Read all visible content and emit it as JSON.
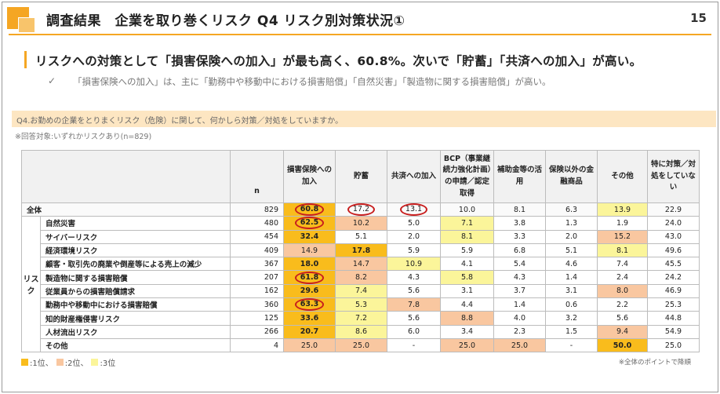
{
  "header": {
    "title": "調査結果　企業を取り巻くリスク Q4 リスク別対策状況①",
    "page_number": "15"
  },
  "headline": "リスクへの対策として「損害保険への加入」が最も高く、60.8%。次いで「貯蓄」「共済への加入」が高い。",
  "subnote": {
    "check": "✓",
    "text": "「損害保険への加入」は、主に「勤務中や移動中における損害賠償」「自然災害」「製造物に関する損害賠償」が高い。"
  },
  "question": "Q4.お勤めの企業をとりまくリスク（危険）に関して、何かしら対策／対処をしていますか。",
  "respondents": "※回答対象:いずれかリスクあり(n=829)",
  "table": {
    "columns": [
      "n",
      "損害保険への加入",
      "貯蓄",
      "共済への加入",
      "BCP（事業継続力強化計画）の申請／認定取得",
      "補助金等の活用",
      "保険以外の金融商品",
      "その他",
      "特に対策／対処をしていない"
    ],
    "group_label": "リスク",
    "total_row": {
      "label": "全体",
      "n": "829",
      "values": [
        "60.8",
        "17.2",
        "13.1",
        "10.0",
        "8.1",
        "6.3",
        "13.9",
        "22.9"
      ],
      "ranks": [
        1,
        0,
        0,
        0,
        0,
        0,
        3,
        0
      ],
      "circled": [
        true,
        true,
        true,
        false,
        false,
        false,
        false,
        false
      ]
    },
    "rows": [
      {
        "label": "自然災害",
        "n": "480",
        "values": [
          "62.5",
          "10.2",
          "5.0",
          "7.1",
          "3.8",
          "1.3",
          "1.9",
          "24.0"
        ],
        "ranks": [
          1,
          2,
          0,
          3,
          0,
          0,
          0,
          0
        ],
        "circled": [
          true,
          false,
          false,
          false,
          false,
          false,
          false,
          false
        ]
      },
      {
        "label": "サイバーリスク",
        "n": "454",
        "values": [
          "32.4",
          "5.1",
          "2.0",
          "8.1",
          "3.3",
          "2.0",
          "15.2",
          "43.0"
        ],
        "ranks": [
          1,
          0,
          0,
          3,
          0,
          0,
          2,
          0
        ],
        "circled": [
          false,
          false,
          false,
          false,
          false,
          false,
          false,
          false
        ]
      },
      {
        "label": "経済環境リスク",
        "n": "409",
        "values": [
          "14.9",
          "17.8",
          "5.9",
          "5.9",
          "6.8",
          "5.1",
          "8.1",
          "49.6"
        ],
        "ranks": [
          2,
          1,
          0,
          0,
          0,
          0,
          3,
          0
        ],
        "circled": [
          false,
          false,
          false,
          false,
          false,
          false,
          false,
          false
        ]
      },
      {
        "label": "顧客・取引先の廃業や倒産等による売上の減少",
        "n": "367",
        "values": [
          "18.0",
          "14.7",
          "10.9",
          "4.1",
          "5.4",
          "4.6",
          "7.4",
          "45.5"
        ],
        "ranks": [
          1,
          2,
          3,
          0,
          0,
          0,
          0,
          0
        ],
        "circled": [
          false,
          false,
          false,
          false,
          false,
          false,
          false,
          false
        ]
      },
      {
        "label": "製造物に関する損害賠償",
        "n": "207",
        "values": [
          "61.8",
          "8.2",
          "4.3",
          "5.8",
          "4.3",
          "1.4",
          "2.4",
          "24.2"
        ],
        "ranks": [
          1,
          2,
          0,
          3,
          0,
          0,
          0,
          0
        ],
        "circled": [
          true,
          false,
          false,
          false,
          false,
          false,
          false,
          false
        ]
      },
      {
        "label": "従業員からの損害賠償請求",
        "n": "162",
        "values": [
          "29.6",
          "7.4",
          "5.6",
          "3.1",
          "3.7",
          "3.1",
          "8.0",
          "46.9"
        ],
        "ranks": [
          1,
          3,
          0,
          0,
          0,
          0,
          2,
          0
        ],
        "circled": [
          false,
          false,
          false,
          false,
          false,
          false,
          false,
          false
        ]
      },
      {
        "label": "勤務中や移動中における損害賠償",
        "n": "360",
        "values": [
          "63.3",
          "5.3",
          "7.8",
          "4.4",
          "1.4",
          "0.6",
          "2.2",
          "25.3"
        ],
        "ranks": [
          1,
          3,
          2,
          0,
          0,
          0,
          0,
          0
        ],
        "circled": [
          true,
          false,
          false,
          false,
          false,
          false,
          false,
          false
        ]
      },
      {
        "label": "知的財産権侵害リスク",
        "n": "125",
        "values": [
          "33.6",
          "7.2",
          "5.6",
          "8.8",
          "4.0",
          "3.2",
          "5.6",
          "44.8"
        ],
        "ranks": [
          1,
          3,
          0,
          2,
          0,
          0,
          0,
          0
        ],
        "circled": [
          false,
          false,
          false,
          false,
          false,
          false,
          false,
          false
        ]
      },
      {
        "label": "人材流出リスク",
        "n": "266",
        "values": [
          "20.7",
          "8.6",
          "6.0",
          "3.4",
          "2.3",
          "1.5",
          "9.4",
          "54.9"
        ],
        "ranks": [
          1,
          3,
          0,
          0,
          0,
          0,
          2,
          0
        ],
        "circled": [
          false,
          false,
          false,
          false,
          false,
          false,
          false,
          false
        ]
      },
      {
        "label": "その他",
        "n": "4",
        "values": [
          "25.0",
          "25.0",
          "-",
          "25.0",
          "25.0",
          "-",
          "50.0",
          "25.0"
        ],
        "ranks": [
          2,
          2,
          0,
          2,
          2,
          0,
          1,
          0
        ],
        "circled": [
          false,
          false,
          false,
          false,
          false,
          false,
          false,
          false
        ]
      }
    ]
  },
  "legend": {
    "items": [
      {
        "label": ":1位、",
        "color": "#f9bc1c"
      },
      {
        "label": ":2位、",
        "color": "#f9c7a0"
      },
      {
        "label": ":3位",
        "color": "#fbf59a"
      }
    ]
  },
  "footnote": "※全体のポイントで降順",
  "colors": {
    "accent": "#f5a623",
    "rank1": "#f9bc1c",
    "rank2": "#f9c7a0",
    "rank3": "#fbf59a",
    "circle": "#c81e1e"
  }
}
